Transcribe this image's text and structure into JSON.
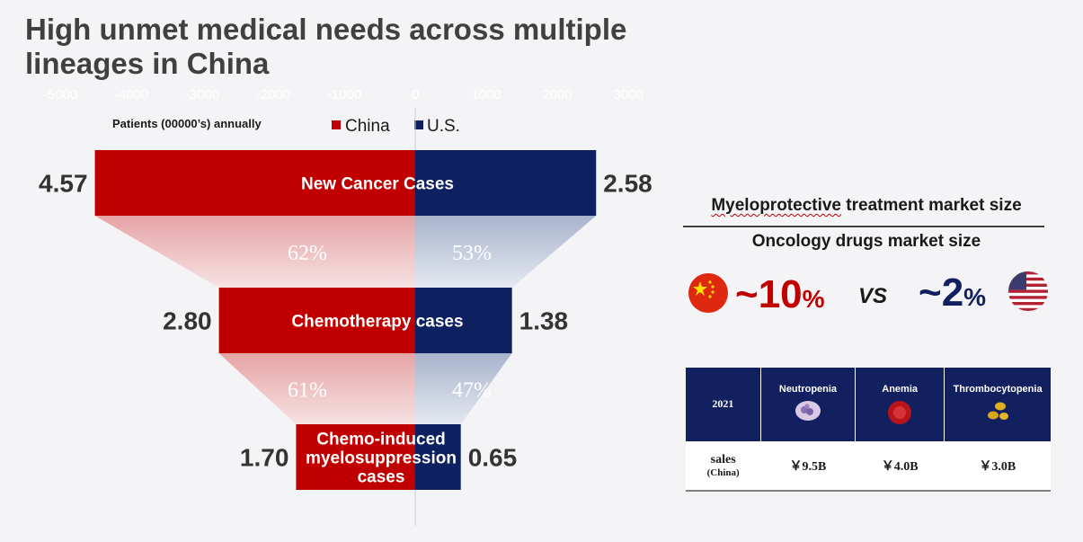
{
  "title": "High unmet medical needs across multiple lineages in China",
  "chart_data": {
    "type": "bar",
    "subtype": "diverging-funnel",
    "ylabel": "Patients (00000’s) annually",
    "axis_ticks": [
      "-5000",
      "-4000",
      "-3000",
      "-2000",
      "-1000",
      "0",
      "1000",
      "2000",
      "3000",
      "4000",
      "5000"
    ],
    "xlim": [
      -5000,
      5000
    ],
    "categories": [
      "New Cancer Cases",
      "Chemotherapy cases",
      "Chemo-induced myelosuppression cases"
    ],
    "category_lines": [
      [
        "New Cancer Cases"
      ],
      [
        "Chemotherapy cases"
      ],
      [
        "Chemo-induced",
        "myelosuppression",
        "cases"
      ]
    ],
    "series": [
      {
        "name": "China",
        "color": "#c00000",
        "values": [
          4.57,
          2.8,
          1.7
        ],
        "labels": [
          "4.57",
          "2.80",
          "1.70"
        ]
      },
      {
        "name": "U.S.",
        "color": "#0d2160",
        "values": [
          2.58,
          1.38,
          0.65
        ],
        "labels": [
          "2.58",
          "1.38",
          "0.65"
        ]
      }
    ],
    "conversion": {
      "China": [
        "62%",
        "61%"
      ],
      "U.S.": [
        "53%",
        "47%"
      ]
    },
    "legend": "top"
  },
  "market": {
    "title_squiggle": "Myeloprotective",
    "title_rest": " treatment market size",
    "subtitle": "Oncology drugs market size",
    "china_pct": "~10",
    "us_pct": "~2",
    "unit": "%",
    "vs": "VS",
    "china_color": "#c00000",
    "us_color": "#122060"
  },
  "table": {
    "year": "2021",
    "headers": [
      "Neutropenia",
      "Anemia",
      "Thrombocytopenia"
    ],
    "row_label": "sales",
    "row_sub": "(China)",
    "values": [
      "￥9.5B",
      "￥4.0B",
      "￥3.0B"
    ]
  }
}
